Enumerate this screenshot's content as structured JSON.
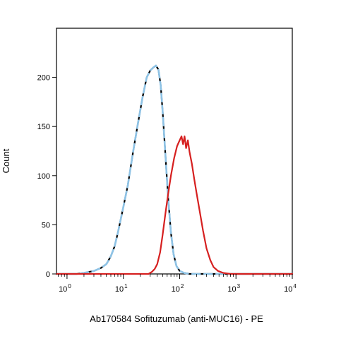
{
  "chart_data": {
    "type": "line",
    "title": "",
    "xlabel": "Ab170584 Sofituzumab (anti-MUC16) - PE",
    "ylabel": "Count",
    "x_scale": "log",
    "xlim": [
      0.65,
      10000
    ],
    "ylim": [
      0,
      250
    ],
    "y_ticks": [
      0,
      50,
      100,
      150,
      200
    ],
    "x_ticks": [
      {
        "value": 1,
        "base": "10",
        "exp": "0"
      },
      {
        "value": 10,
        "base": "10",
        "exp": "1"
      },
      {
        "value": 100,
        "base": "10",
        "exp": "2"
      },
      {
        "value": 1000,
        "base": "10",
        "exp": "3"
      },
      {
        "value": 10000,
        "base": "10",
        "exp": "4"
      }
    ],
    "grid": false,
    "legend": "none",
    "series": [
      {
        "color": "#000000",
        "style": "solid",
        "points": [
          [
            0.65,
            0
          ],
          [
            1.5,
            0
          ],
          [
            2,
            1
          ],
          [
            3,
            3
          ],
          [
            4,
            6
          ],
          [
            5,
            10
          ],
          [
            6,
            18
          ],
          [
            7,
            28
          ],
          [
            8,
            42
          ],
          [
            10,
            68
          ],
          [
            12,
            90
          ],
          [
            15,
            125
          ],
          [
            18,
            152
          ],
          [
            22,
            180
          ],
          [
            26,
            200
          ],
          [
            30,
            207
          ],
          [
            34,
            210
          ],
          [
            38,
            212
          ],
          [
            42,
            208
          ],
          [
            46,
            192
          ],
          [
            50,
            165
          ],
          [
            56,
            120
          ],
          [
            62,
            80
          ],
          [
            70,
            42
          ],
          [
            78,
            20
          ],
          [
            88,
            8
          ],
          [
            100,
            3
          ],
          [
            120,
            1
          ],
          [
            150,
            0
          ],
          [
            10000,
            0
          ]
        ]
      },
      {
        "color": "#8ec3e6",
        "style": "dashed",
        "points": [
          [
            0.65,
            0
          ],
          [
            1.5,
            0
          ],
          [
            2,
            1
          ],
          [
            3,
            3
          ],
          [
            4,
            6
          ],
          [
            5,
            10
          ],
          [
            6,
            18
          ],
          [
            7,
            28
          ],
          [
            8,
            42
          ],
          [
            10,
            68
          ],
          [
            12,
            90
          ],
          [
            15,
            125
          ],
          [
            18,
            152
          ],
          [
            22,
            180
          ],
          [
            26,
            200
          ],
          [
            30,
            207
          ],
          [
            34,
            210
          ],
          [
            38,
            212
          ],
          [
            42,
            208
          ],
          [
            46,
            192
          ],
          [
            50,
            165
          ],
          [
            56,
            120
          ],
          [
            62,
            80
          ],
          [
            70,
            42
          ],
          [
            78,
            20
          ],
          [
            88,
            8
          ],
          [
            100,
            3
          ],
          [
            120,
            1
          ],
          [
            150,
            0
          ],
          [
            10000,
            0
          ]
        ]
      },
      {
        "color": "#d62020",
        "style": "solid",
        "points": [
          [
            0.65,
            0
          ],
          [
            28,
            0
          ],
          [
            32,
            2
          ],
          [
            36,
            5
          ],
          [
            40,
            10
          ],
          [
            45,
            22
          ],
          [
            50,
            40
          ],
          [
            56,
            62
          ],
          [
            62,
            80
          ],
          [
            70,
            100
          ],
          [
            80,
            118
          ],
          [
            90,
            130
          ],
          [
            100,
            136
          ],
          [
            108,
            140
          ],
          [
            115,
            132
          ],
          [
            122,
            140
          ],
          [
            130,
            128
          ],
          [
            140,
            136
          ],
          [
            150,
            124
          ],
          [
            165,
            112
          ],
          [
            180,
            98
          ],
          [
            200,
            82
          ],
          [
            230,
            62
          ],
          [
            260,
            44
          ],
          [
            300,
            26
          ],
          [
            350,
            14
          ],
          [
            400,
            7
          ],
          [
            480,
            3
          ],
          [
            600,
            1
          ],
          [
            800,
            0
          ],
          [
            10000,
            0
          ]
        ]
      }
    ]
  }
}
